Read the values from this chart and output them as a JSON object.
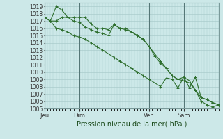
{
  "background_color": "#cce8e8",
  "grid_color": "#aacccc",
  "line_color": "#2d6e2d",
  "xlabel": "Pression niveau de la mer( hPa )",
  "ylim": [
    1005,
    1019.5
  ],
  "yticks": [
    1005,
    1006,
    1007,
    1008,
    1009,
    1010,
    1011,
    1012,
    1013,
    1014,
    1015,
    1016,
    1017,
    1018,
    1019
  ],
  "xtick_labels": [
    "Jeu",
    "Dim",
    "Ven",
    "Sam"
  ],
  "xtick_positions": [
    0,
    3,
    9,
    12
  ],
  "vline_positions": [
    0,
    3,
    9,
    12
  ],
  "series1_x": [
    0,
    0.5,
    1,
    1.5,
    2,
    2.5,
    3,
    3.5,
    4,
    4.5,
    5,
    5.5,
    6,
    6.5,
    7,
    7.5,
    8,
    8.5,
    9,
    9.5,
    10,
    10.5,
    11,
    11.5,
    12,
    12.5,
    13,
    13.5,
    14,
    14.5,
    15
  ],
  "series1_y": [
    1017.5,
    1017.0,
    1019.0,
    1018.5,
    1017.5,
    1017.5,
    1017.5,
    1017.5,
    1016.6,
    1016.0,
    1016.0,
    1015.8,
    1016.5,
    1016.0,
    1016.0,
    1015.5,
    1015.0,
    1014.5,
    1013.5,
    1012.5,
    1011.5,
    1010.5,
    1009.5,
    1009.0,
    1009.3,
    1007.8,
    1009.3,
    1006.5,
    1006.2,
    1005.8,
    1005.5
  ],
  "series2_x": [
    0,
    0.5,
    1,
    1.5,
    2,
    2.5,
    3,
    3.5,
    4,
    4.5,
    5,
    5.5,
    6,
    6.5,
    7,
    7.5,
    8,
    8.5,
    9,
    9.5,
    10,
    10.5,
    11,
    11.5,
    12,
    12.5,
    13,
    13.5,
    14,
    14.5,
    15
  ],
  "series2_y": [
    1017.5,
    1017.0,
    1017.0,
    1017.5,
    1017.5,
    1017.0,
    1016.8,
    1016.2,
    1015.8,
    1015.5,
    1015.3,
    1015.0,
    1016.5,
    1016.0,
    1015.8,
    1015.5,
    1015.0,
    1014.5,
    1013.5,
    1012.2,
    1011.2,
    1010.5,
    1009.5,
    1009.0,
    1008.8,
    1008.5,
    1007.5,
    1006.0,
    1005.5,
    1005.2,
    1005.5
  ],
  "series3_x": [
    0,
    0.5,
    1,
    1.5,
    2,
    2.5,
    3,
    3.5,
    4,
    4.5,
    5,
    5.5,
    6,
    6.5,
    7,
    7.5,
    8,
    8.5,
    9,
    9.5,
    10,
    10.5,
    11,
    11.5,
    12,
    12.5,
    13,
    13.5,
    14,
    14.5,
    15
  ],
  "series3_y": [
    1017.5,
    1017.0,
    1016.0,
    1015.8,
    1015.5,
    1015.0,
    1014.8,
    1014.5,
    1014.0,
    1013.5,
    1013.0,
    1012.5,
    1012.0,
    1011.5,
    1011.0,
    1010.5,
    1010.0,
    1009.5,
    1009.0,
    1008.5,
    1008.0,
    1009.2,
    1009.0,
    1007.8,
    1009.3,
    1008.8,
    1007.5,
    1006.5,
    1006.2,
    1005.8,
    1005.5
  ],
  "xlim": [
    0,
    15
  ]
}
